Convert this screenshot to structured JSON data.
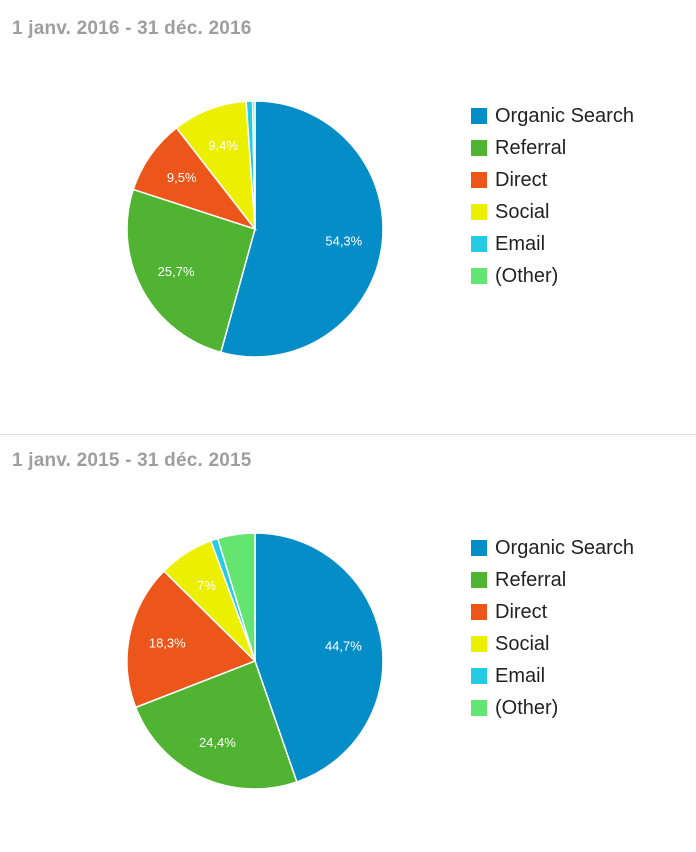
{
  "chart_data": [
    {
      "type": "pie",
      "title": "1 janv. 2016 - 31 déc. 2016",
      "categories": [
        "Organic Search",
        "Referral",
        "Direct",
        "Social",
        "Email",
        "(Other)"
      ],
      "values": [
        54.3,
        25.7,
        9.5,
        9.4,
        0.8,
        0.3
      ],
      "data_labels": [
        "54,3%",
        "25,7%",
        "9,5%",
        "9,4%",
        "",
        ""
      ],
      "colors": [
        "#058dc7",
        "#50b432",
        "#ed561b",
        "#edef00",
        "#24cbe5",
        "#64e572"
      ],
      "legend_position": "right"
    },
    {
      "type": "pie",
      "title": "1 janv. 2015 - 31 déc. 2015",
      "categories": [
        "Organic Search",
        "Referral",
        "Direct",
        "Social",
        "Email",
        "(Other)"
      ],
      "values": [
        44.7,
        24.4,
        18.3,
        7.0,
        0.9,
        4.7
      ],
      "data_labels": [
        "44,7%",
        "24,4%",
        "18,3%",
        "7%",
        "",
        ""
      ],
      "colors": [
        "#058dc7",
        "#50b432",
        "#ed561b",
        "#edef00",
        "#24cbe5",
        "#64e572"
      ],
      "legend_position": "right"
    }
  ]
}
